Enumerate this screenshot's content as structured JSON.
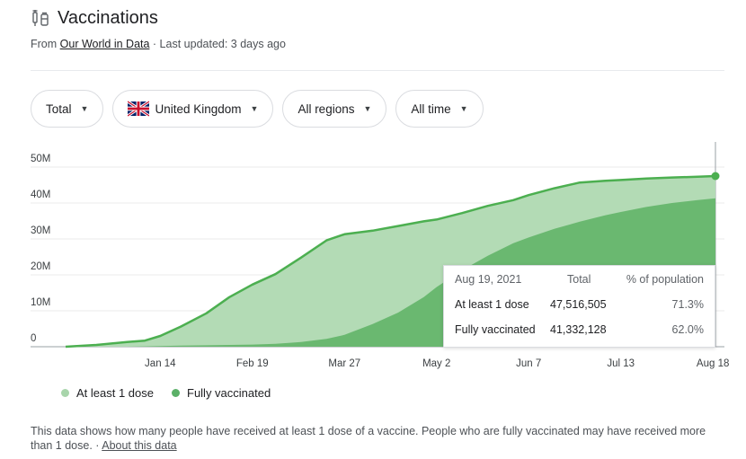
{
  "header": {
    "title": "Vaccinations",
    "source_prefix": "From ",
    "source_link": "Our World in Data",
    "source_suffix": " · Last updated: 3 days ago",
    "icon": "syringe-icon"
  },
  "filters": [
    {
      "label": "Total",
      "icon": "chevron-down-icon"
    },
    {
      "label": "United Kingdom",
      "icon": "uk-flag-icon"
    },
    {
      "label": "All regions",
      "icon": "chevron-down-icon"
    },
    {
      "label": "All time",
      "icon": "chevron-down-icon"
    }
  ],
  "tooltip": {
    "date": "Aug 19, 2021",
    "col_total": "Total",
    "col_pct": "% of population",
    "rows": [
      {
        "label": "At least 1 dose",
        "total": "47,516,505",
        "pct": "71.3%"
      },
      {
        "label": "Fully vaccinated",
        "total": "41,332,128",
        "pct": "62.0%"
      }
    ]
  },
  "legend": [
    {
      "label": "At least 1 dose",
      "color": "#a8d5ab"
    },
    {
      "label": "Fully vaccinated",
      "color": "#5bb068"
    }
  ],
  "footnote": {
    "text": "This data shows how many people have received at least 1 dose of a vaccine. People who are fully vaccinated may have received more than 1 dose. · ",
    "link": "About this data"
  },
  "colors": {
    "line": "#4caf50",
    "area_dose1": "#b3dbb5",
    "area_full": "#6ab870"
  },
  "chart_data": {
    "type": "area",
    "ylim": [
      0,
      50
    ],
    "y_unit": "M",
    "y_ticks": [
      "0",
      "10M",
      "20M",
      "30M",
      "40M",
      "50M"
    ],
    "x_ticks": [
      "Jan 14",
      "Feb 19",
      "Mar 27",
      "May 2",
      "Jun 7",
      "Jul 13",
      "Aug 18"
    ],
    "x_range": [
      "Dec 8",
      "Aug 19"
    ],
    "x": [
      "Dec 8",
      "Dec 20",
      "Jan 1",
      "Jan 8",
      "Jan 14",
      "Jan 22",
      "Feb 1",
      "Feb 10",
      "Feb 19",
      "Feb 28",
      "Mar 10",
      "Mar 20",
      "Mar 27",
      "Apr 7",
      "Apr 17",
      "Apr 27",
      "May 2",
      "May 12",
      "May 22",
      "Jun 1",
      "Jun 7",
      "Jun 17",
      "Jun 27",
      "Jul 7",
      "Jul 13",
      "Jul 23",
      "Aug 2",
      "Aug 12",
      "Aug 19"
    ],
    "series": [
      {
        "name": "At least 1 dose",
        "values": [
          0,
          0.5,
          1.3,
          1.7,
          3,
          5.6,
          9.3,
          13.8,
          17.3,
          20.2,
          24.8,
          29.6,
          31.3,
          32.3,
          33.6,
          34.9,
          35.4,
          37.2,
          39.2,
          40.8,
          42.2,
          44.1,
          45.7,
          46.2,
          46.4,
          46.8,
          47.1,
          47.3,
          47.5
        ]
      },
      {
        "name": "Fully vaccinated",
        "values": [
          0,
          0,
          0,
          0.1,
          0.2,
          0.3,
          0.4,
          0.5,
          0.6,
          0.8,
          1.3,
          2.2,
          3.3,
          6.3,
          9.5,
          13.8,
          16.6,
          21.3,
          25.3,
          28.8,
          30.4,
          32.8,
          34.8,
          36.6,
          37.5,
          38.9,
          40.0,
          40.8,
          41.3
        ]
      }
    ],
    "grid": true,
    "legend_position": "bottom-left"
  }
}
